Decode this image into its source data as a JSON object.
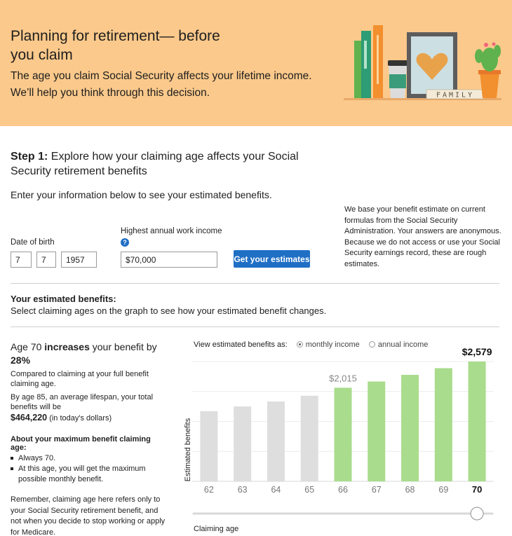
{
  "banner": {
    "title": "Planning for retirement— before you claim",
    "subtitle": "The age you claim Social Security affects your lifetime income. We’ll help you think through this decision.",
    "illustration_text": "FAMILY"
  },
  "step1": {
    "label": "Step 1:",
    "heading": "Explore how your claiming age affects your Social Security retirement benefits",
    "intro": "Enter your information below to see your estimated benefits.",
    "dob_label": "Date of birth",
    "dob_month": "7",
    "dob_day": "7",
    "dob_year": "1957",
    "income_label": "Highest annual work income",
    "income_value": "$70,000",
    "help_icon": "?",
    "button_label": "Get your estimates",
    "note": "We base your benefit estimate on current formulas from the Social Security Administration. Your answers are anonymous. Because we do not access or use your Social Security earnings record, these are rough estimates."
  },
  "estimates": {
    "heading": "Your estimated benefits:",
    "subheading": "Select claiming ages on the graph to see how your estimated benefit changes."
  },
  "summary": {
    "age_prefix": "Age 70 ",
    "increase_word": "increases",
    "age_suffix": " your benefit by ",
    "percent": "28%",
    "comparison": "Compared to claiming at your full benefit claiming age.",
    "lifespan_text": "By age 85, an average lifespan, your total benefits will be",
    "total": "$464,220",
    "total_note": " (in today's dollars)",
    "max_title": "About your maximum benefit claiming age:",
    "max_points": [
      "Always 70.",
      "At this age, you will get the maximum possible monthly benefit."
    ],
    "remember": "Remember, claiming age here refers only to your Social Security retirement benefit, and not when you decide to stop working or apply for Medicare."
  },
  "view_options": {
    "label": "View estimated benefits as:",
    "monthly": "monthly income",
    "annual": "annual income",
    "selected": "monthly"
  },
  "colors": {
    "banner": "#fbc98b",
    "button": "#1f6fc5",
    "bar_early": "#dedede",
    "bar_full_or_later": "#a9dc8c"
  },
  "chart_data": {
    "type": "bar",
    "categories": [
      "62",
      "63",
      "64",
      "65",
      "66",
      "67",
      "68",
      "69",
      "70"
    ],
    "values": [
      1511,
      1612,
      1719,
      1843,
      2015,
      2149,
      2292,
      2436,
      2579
    ],
    "labels": [
      "",
      "",
      "",
      "",
      "$2,015",
      "",
      "",
      "",
      "$2,579"
    ],
    "highlight_from": "66",
    "selected": "70",
    "ylabel": "Estimated benefits",
    "xlabel": "Claiming age",
    "ylim": [
      0,
      2579
    ],
    "grid": true
  }
}
